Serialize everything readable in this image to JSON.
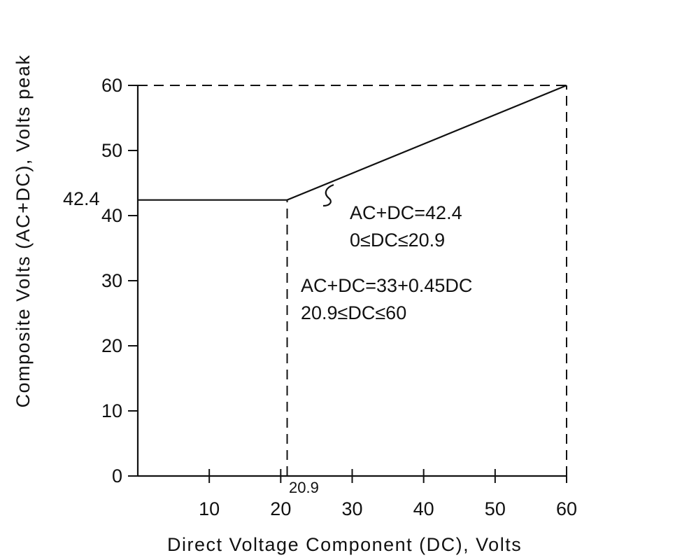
{
  "chart_data": {
    "type": "line",
    "title": "",
    "xlabel": "Direct Voltage Component (DC), Volts",
    "ylabel": "Composite Volts (AC+DC), Volts peak",
    "xlim": [
      0,
      60
    ],
    "ylim": [
      0,
      60
    ],
    "x_ticks": [
      "10",
      "20",
      "30",
      "40",
      "50",
      "60"
    ],
    "y_ticks": [
      "0",
      "10",
      "20",
      "30",
      "40",
      "50",
      "60"
    ],
    "series": [
      {
        "x": [
          0,
          20.9,
          60
        ],
        "y": [
          42.4,
          42.4,
          60
        ]
      }
    ],
    "reference_lines": [
      {
        "kind": "vertical",
        "x": 20.9,
        "from_y": 0,
        "to_y": 42.4,
        "style": "dashed"
      },
      {
        "kind": "vertical",
        "x": 60,
        "from_y": 0,
        "to_y": 60,
        "style": "dashed"
      },
      {
        "kind": "horizontal",
        "y": 60,
        "from_x": 0,
        "to_x": 60,
        "style": "dashed"
      }
    ],
    "value_labels": {
      "y_marker": "42.4",
      "x_marker": "20.9"
    },
    "annotations": [
      {
        "lines": [
          "AC+DC=42.4",
          "0≤DC≤20.9"
        ]
      },
      {
        "lines": [
          "AC+DC=33+0.45DC",
          "20.9≤DC≤60"
        ]
      }
    ],
    "grid": false,
    "legend": "none"
  }
}
